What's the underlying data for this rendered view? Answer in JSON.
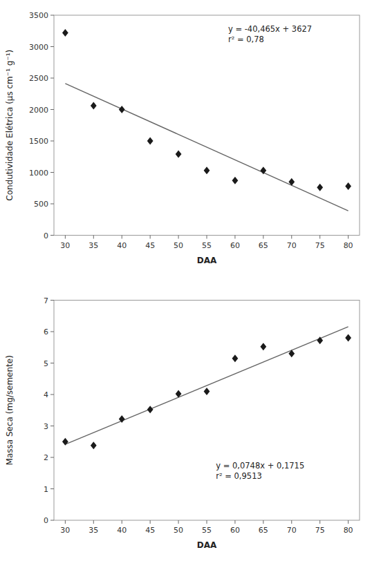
{
  "chart_data": [
    {
      "type": "scatter",
      "xlabel": "DAA",
      "ylabel": "Condutividade Elétrica (μs cm⁻¹ g⁻¹)",
      "xlim": [
        28,
        82
      ],
      "ylim": [
        0,
        3500
      ],
      "xticks": [
        30,
        35,
        40,
        45,
        50,
        55,
        60,
        65,
        70,
        75,
        80
      ],
      "yticks": [
        0,
        500,
        1000,
        1500,
        2000,
        2500,
        3000,
        3500
      ],
      "grid": false,
      "annotations": [
        "y = -40,465x + 3627",
        "r² = 0,78"
      ],
      "series": [
        {
          "type": "scatter",
          "marker": "diamond",
          "color": "#1a1a1a",
          "x": [
            30,
            35,
            40,
            45,
            50,
            55,
            60,
            65,
            70,
            75,
            80
          ],
          "values": [
            3220,
            2060,
            2000,
            1500,
            1290,
            1030,
            870,
            1030,
            850,
            760,
            780
          ]
        },
        {
          "type": "line",
          "line_style": "solid",
          "color": "#666666",
          "x": [
            30,
            80
          ],
          "values": [
            2413.05,
            389.8
          ]
        }
      ]
    },
    {
      "type": "scatter",
      "xlabel": "DAA",
      "ylabel": "Massa Seca (mg/semente)",
      "xlim": [
        28,
        82
      ],
      "ylim": [
        0,
        7
      ],
      "xticks": [
        30,
        35,
        40,
        45,
        50,
        55,
        60,
        65,
        70,
        75,
        80
      ],
      "yticks": [
        0,
        1,
        2,
        3,
        4,
        5,
        6,
        7
      ],
      "grid": false,
      "annotations": [
        "y = 0,0748x + 0,1715",
        "r² = 0,9513"
      ],
      "series": [
        {
          "type": "scatter",
          "marker": "diamond",
          "color": "#1a1a1a",
          "x": [
            30,
            35,
            40,
            45,
            50,
            55,
            60,
            65,
            70,
            75,
            80
          ],
          "values": [
            2.5,
            2.38,
            3.22,
            3.52,
            4.02,
            4.1,
            5.15,
            5.52,
            5.3,
            5.72,
            5.8
          ]
        },
        {
          "type": "line",
          "line_style": "solid",
          "color": "#666666",
          "x": [
            30,
            80
          ],
          "values": [
            2.4155,
            6.1555
          ]
        }
      ]
    }
  ]
}
